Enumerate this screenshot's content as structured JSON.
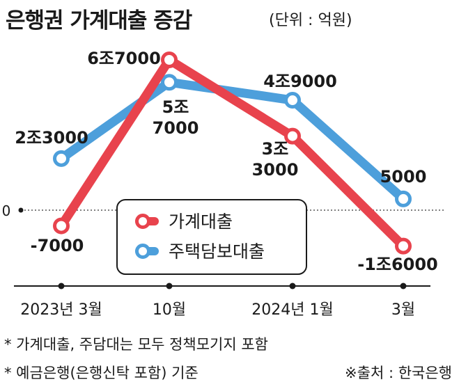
{
  "title": "은행권 가계대출 증감",
  "unit": "(단위 : 억원)",
  "notes": [
    "* 가계대출, 주담대는 모두 정책모기지 포함",
    "* 예금은행(은행신탁 포함) 기준"
  ],
  "source": "※출처 : 한국은행",
  "colors": {
    "red": "#e8434d",
    "blue": "#4d9fdb",
    "axis": "#1a1a1a"
  },
  "chart_data": {
    "type": "line",
    "categories": [
      "2023년 3월",
      "10월",
      "2024년 1월",
      "3월"
    ],
    "zero_label": "0",
    "ylim": [
      -20000,
      70000
    ],
    "legend_position": "center-bottom",
    "series": [
      {
        "name": "가계대출",
        "color": "#e8434d",
        "values": [
          -7000,
          67000,
          33000,
          -16000
        ],
        "labels": [
          "-7000",
          "6조7000",
          "3조\n3000",
          "-1조6000"
        ]
      },
      {
        "name": "주택담보대출",
        "color": "#4d9fdb",
        "values": [
          23000,
          57000,
          49000,
          5000
        ],
        "labels": [
          "2조3000",
          "5조\n7000",
          "4조9000",
          "5000"
        ]
      }
    ]
  }
}
